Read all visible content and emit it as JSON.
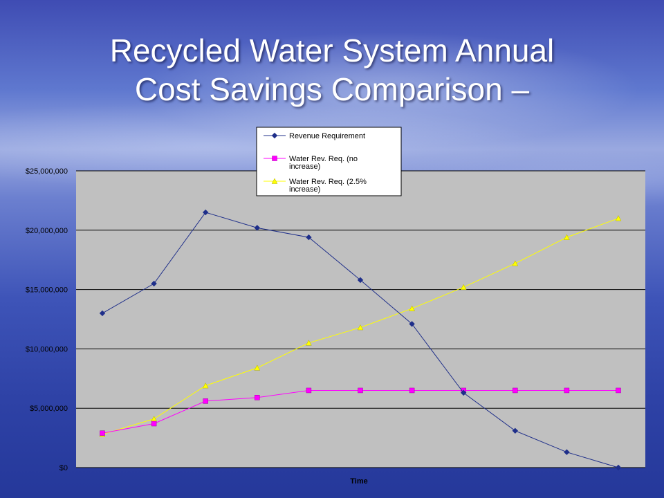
{
  "slide": {
    "title_line1": "Recycled Water System Annual",
    "title_line2": "Cost Savings Comparison –"
  },
  "chart_data": {
    "type": "line",
    "xlabel": "Time",
    "ylabel": "",
    "ylim": [
      0,
      25000000
    ],
    "yticks": [
      "$0",
      "$5,000,000",
      "$10,000,000",
      "$15,000,000",
      "$20,000,000",
      "$25,000,000"
    ],
    "ytick_values": [
      0,
      5000000,
      10000000,
      15000000,
      20000000,
      25000000
    ],
    "grid": true,
    "legend_position": "top",
    "plot_background": "#c0c0c0",
    "x": [
      1,
      2,
      3,
      4,
      5,
      6,
      7,
      8,
      9,
      10,
      11
    ],
    "series": [
      {
        "name_lines": [
          "Revenue  Requirement"
        ],
        "color": "#1f2f8a",
        "marker": "diamond",
        "values": [
          13000000,
          15500000,
          21500000,
          20200000,
          19400000,
          15800000,
          12100000,
          6300000,
          3100000,
          1300000,
          0
        ]
      },
      {
        "name_lines": [
          "Water Rev. Req. (no",
          "increase)"
        ],
        "color": "#ff00ff",
        "marker": "square",
        "values": [
          2900000,
          3700000,
          5600000,
          5900000,
          6500000,
          6500000,
          6500000,
          6500000,
          6500000,
          6500000,
          6500000
        ]
      },
      {
        "name_lines": [
          "Water Rev. Req. (2.5%",
          "increase)"
        ],
        "color": "#ffff00",
        "marker": "triangle",
        "values": [
          2800000,
          4100000,
          6900000,
          8400000,
          10500000,
          11800000,
          13400000,
          15200000,
          17200000,
          19400000,
          21000000
        ]
      }
    ]
  }
}
